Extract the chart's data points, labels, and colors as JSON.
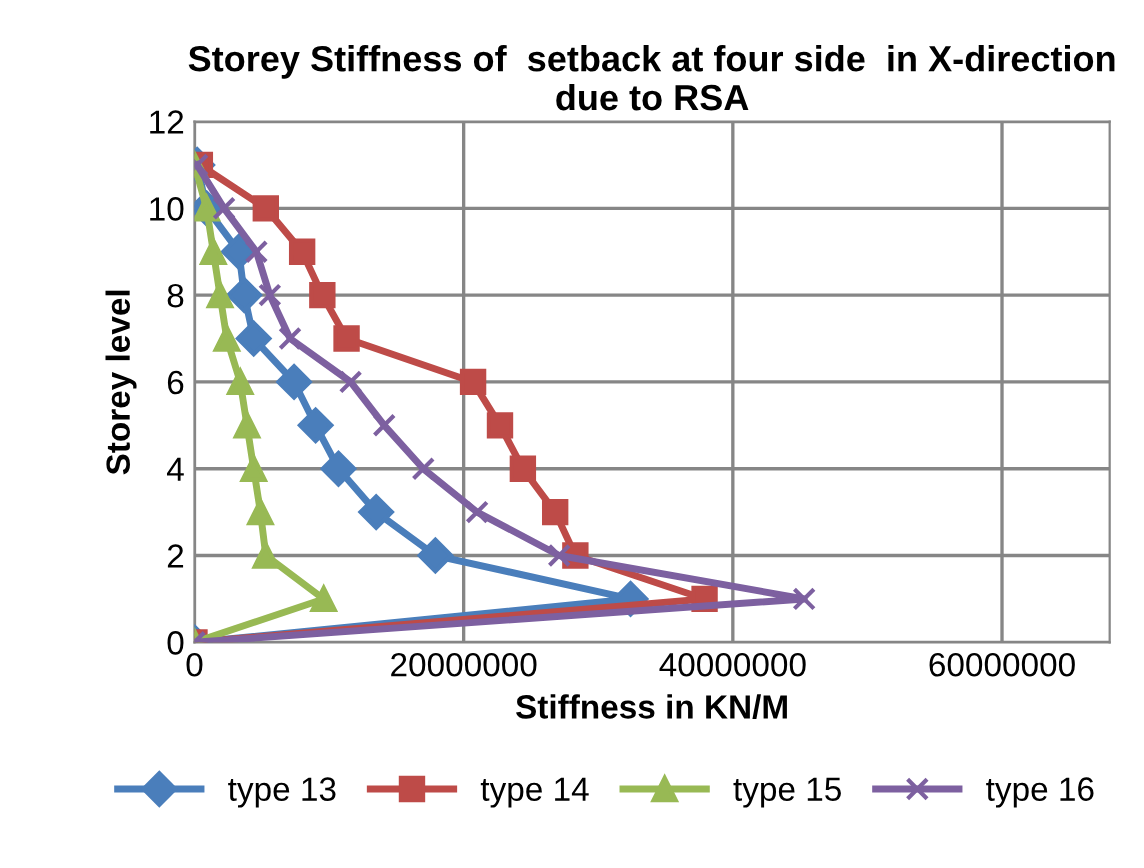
{
  "chart_data": {
    "type": "line",
    "title": "Storey Stiffness of  setback at four side  in X-direction due to RSA",
    "xlabel": "Stiffness in KN/M",
    "ylabel": "Storey level",
    "series": [
      {
        "name": "type 13",
        "color": "#4a7ebb",
        "marker": "diamond",
        "x": [
          0,
          32400000,
          17900000,
          13500000,
          10700000,
          9000000,
          7400000,
          4400000,
          3700000,
          3300000,
          900000,
          200000
        ],
        "values": [
          0,
          1,
          2,
          3,
          4,
          5,
          6,
          7,
          8,
          9,
          10,
          11
        ]
      },
      {
        "name": "type 14",
        "color": "#be4b48",
        "marker": "square",
        "x": [
          0,
          37900000,
          28300000,
          26800000,
          24400000,
          22700000,
          20700000,
          11300000,
          9500000,
          8000000,
          5300000,
          400000
        ],
        "values": [
          0,
          1,
          2,
          3,
          4,
          5,
          6,
          7,
          8,
          9,
          10,
          11
        ]
      },
      {
        "name": "type 15",
        "color": "#98b954",
        "marker": "triangle",
        "x": [
          0,
          9600000,
          5300000,
          4900000,
          4400000,
          3900000,
          3400000,
          2400000,
          1900000,
          1400000,
          900000,
          0
        ],
        "values": [
          0,
          1,
          2,
          3,
          4,
          5,
          6,
          7,
          8,
          9,
          10,
          11
        ]
      },
      {
        "name": "type 16",
        "color": "#7d60a0",
        "marker": "cross",
        "x": [
          0,
          45300000,
          27100000,
          21000000,
          17000000,
          14100000,
          11600000,
          7100000,
          5600000,
          4600000,
          2200000,
          200000
        ],
        "values": [
          0,
          1,
          2,
          3,
          4,
          5,
          6,
          7,
          8,
          9,
          10,
          11
        ]
      }
    ],
    "xlim": [
      0,
      68000000
    ],
    "xticks": [
      0,
      20000000,
      40000000,
      60000000
    ],
    "ylim": [
      0,
      12
    ],
    "yticks": [
      0,
      2,
      4,
      6,
      8,
      10,
      12
    ],
    "grid": true,
    "legend": "bottom",
    "line_style": "solid"
  }
}
